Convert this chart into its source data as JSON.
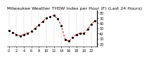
{
  "title": "Milwaukee Weather THSW Index per Hour (F) (Last 24 Hours)",
  "x": [
    0,
    1,
    2,
    3,
    4,
    5,
    6,
    7,
    8,
    9,
    10,
    11,
    12,
    13,
    14,
    15,
    16,
    17,
    18,
    19,
    20,
    21,
    22,
    23
  ],
  "y": [
    45,
    42,
    38,
    35,
    38,
    40,
    44,
    50,
    56,
    63,
    70,
    72,
    75,
    68,
    55,
    28,
    25,
    32,
    38,
    40,
    40,
    48,
    58,
    65
  ],
  "line_color": "#cc0000",
  "marker_color": "#000000",
  "background_color": "#ffffff",
  "grid_color": "#999999",
  "ylim": [
    15,
    85
  ],
  "ytick_positions": [
    20,
    30,
    40,
    50,
    60,
    70,
    80
  ],
  "ytick_labels": [
    "20",
    "30",
    "40",
    "50",
    "60",
    "70",
    "80"
  ],
  "xtick_positions": [
    0,
    2,
    4,
    6,
    8,
    10,
    12,
    14,
    16,
    18,
    20,
    22
  ],
  "xtick_labels": [
    "0",
    "2",
    "4",
    "6",
    "8",
    "10",
    "12",
    "14",
    "16",
    "18",
    "20",
    "22"
  ],
  "title_fontsize": 4.5,
  "tick_fontsize": 3.5,
  "line_width": 0.7,
  "marker_size": 1.3
}
